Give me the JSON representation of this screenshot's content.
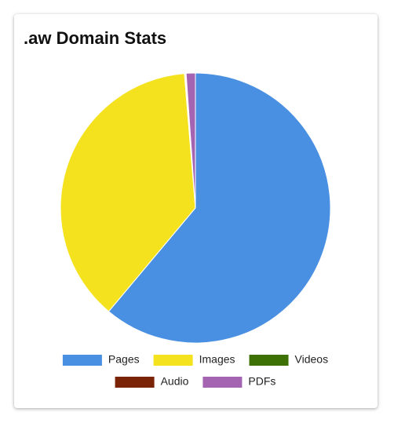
{
  "chart_data": {
    "type": "pie",
    "title": ".aw Domain Stats",
    "categories": [
      "Pages",
      "Images",
      "Videos",
      "Audio",
      "PDFs"
    ],
    "values": [
      61.1,
      37.6,
      0.1,
      0.1,
      1.1
    ],
    "colors": [
      "#4a90e2",
      "#f5e21f",
      "#3d7106",
      "#7a2306",
      "#a464b2"
    ],
    "legend": "bottom"
  }
}
